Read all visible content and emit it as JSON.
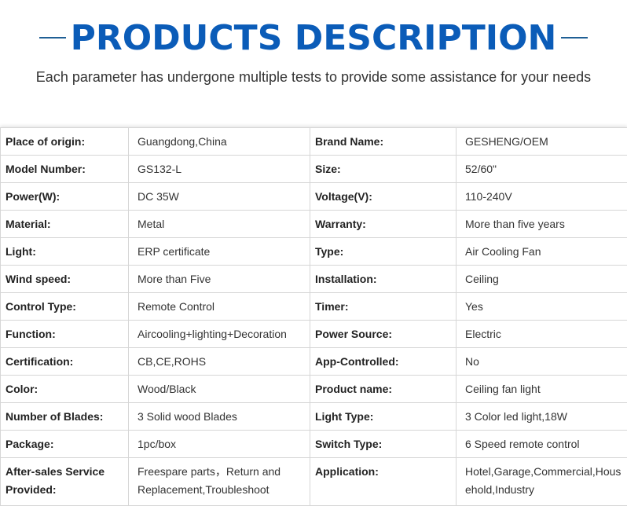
{
  "header": {
    "title": "PRODUCTS DESCRIPTION",
    "subtitle": "Each parameter has undergone multiple tests to provide some assistance for your needs",
    "accent_color": "#0b5cb8"
  },
  "specs": [
    {
      "k1": "Place of origin:",
      "v1": "Guangdong,China",
      "k2": "Brand Name:",
      "v2": "GESHENG/OEM"
    },
    {
      "k1": "Model Number:",
      "v1": "GS132-L",
      "k2": "Size:",
      "v2": "52/60\""
    },
    {
      "k1": "Power(W):",
      "v1": "DC 35W",
      "k2": "Voltage(V):",
      "v2": "110-240V"
    },
    {
      "k1": "Material:",
      "v1": "Metal",
      "k2": "Warranty:",
      "v2": "More than five years"
    },
    {
      "k1": "Light:",
      "v1": "ERP certificate",
      "k2": "Type:",
      "v2": "Air Cooling Fan"
    },
    {
      "k1": "Wind speed:",
      "v1": "More than Five",
      "k2": "Installation:",
      "v2": "Ceiling"
    },
    {
      "k1": "Control Type:",
      "v1": "Remote Control",
      "k2": "Timer:",
      "v2": "Yes"
    },
    {
      "k1": "Function:",
      "v1": "Aircooling+lighting+Decoration",
      "k2": "Power Source:",
      "v2": "Electric"
    },
    {
      "k1": "Certification:",
      "v1": "CB,CE,ROHS",
      "k2": "App-Controlled:",
      "v2": "No"
    },
    {
      "k1": "Color:",
      "v1": "Wood/Black",
      "k2": "Product name:",
      "v2": "Ceiling fan light"
    },
    {
      "k1": "Number of  Blades:",
      "v1": "3 Solid wood Blades",
      "k2": "Light Type:",
      "v2": "3 Color led light,18W"
    },
    {
      "k1": "Package:",
      "v1": "1pc/box",
      "k2": "Switch Type:",
      "v2": "6 Speed remote control"
    },
    {
      "k1": "After-sales Service Provided:",
      "v1": "Freespare parts，Return and Replacement,Troubleshoot",
      "k2": "Application:",
      "v2": "Hotel,Garage,Commercial,Household,Industry"
    }
  ]
}
